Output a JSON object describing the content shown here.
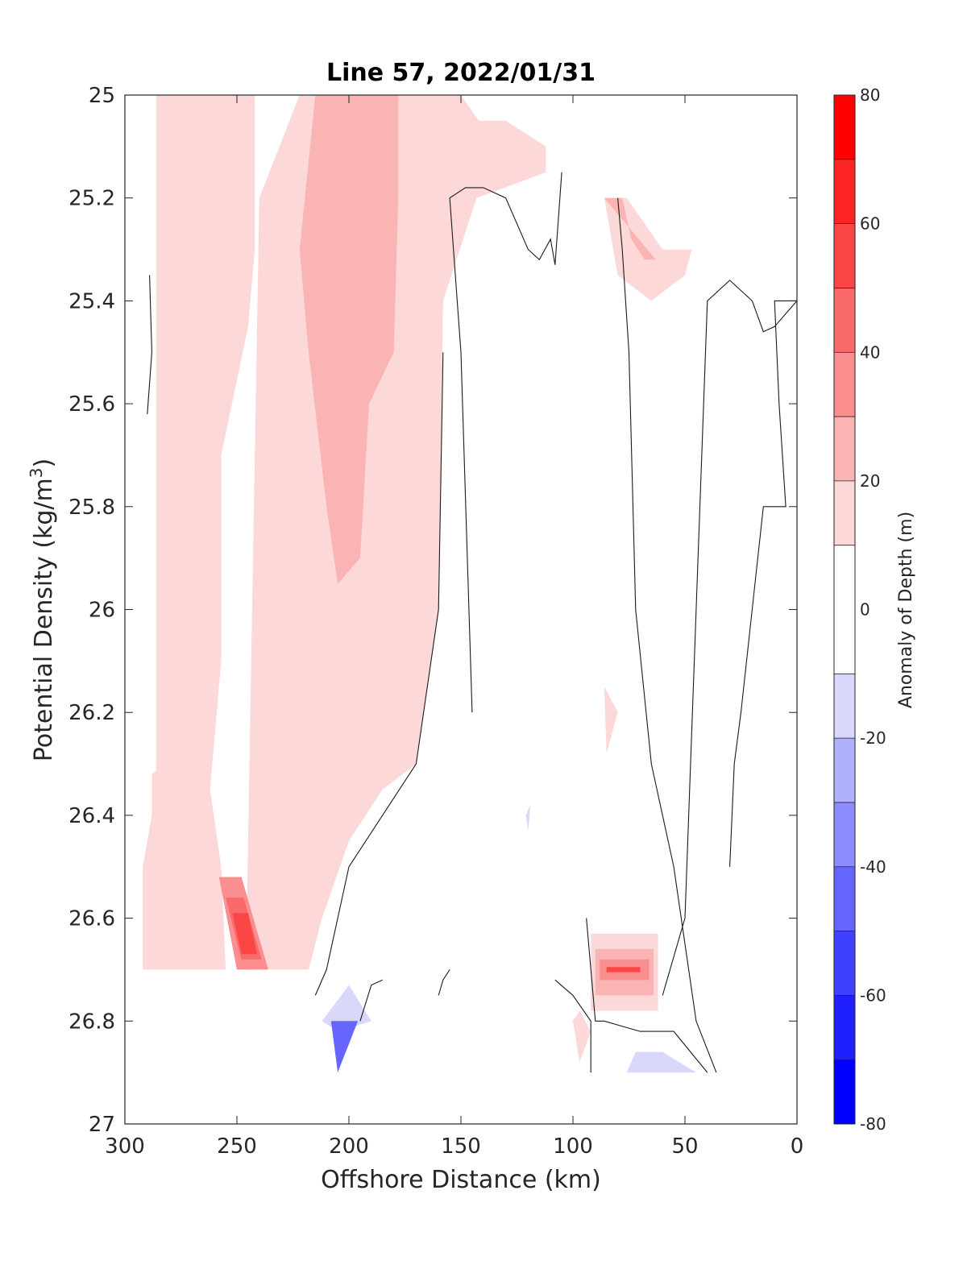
{
  "chart_data": {
    "type": "contourf",
    "title": "Line 57, 2022/01/31",
    "xlabel": "Offshore Distance (km)",
    "ylabel_main": "Potential Density (kg/m",
    "ylabel_sup": "3",
    "ylabel_end": ")",
    "xlim": [
      300,
      0
    ],
    "ylim": [
      27,
      25
    ],
    "x_reversed": true,
    "y_reversed": true,
    "grid": false,
    "x_ticks": [
      300,
      250,
      200,
      150,
      100,
      50,
      0
    ],
    "y_ticks": [
      25,
      25.2,
      25.4,
      25.6,
      25.8,
      26,
      26.2,
      26.4,
      26.6,
      26.8,
      27
    ],
    "y_tick_labels": [
      "25",
      "25.2",
      "25.4",
      "25.6",
      "25.8",
      "26",
      "26.2",
      "26.4",
      "26.6",
      "26.8",
      "27"
    ],
    "colorbar": {
      "label": "Anomaly of Depth (m)",
      "ticks": [
        80,
        60,
        40,
        20,
        0,
        -20,
        -40,
        -60,
        -80
      ],
      "levels": [
        -80,
        -70,
        -60,
        -50,
        -40,
        -30,
        -20,
        -10,
        10,
        20,
        30,
        40,
        50,
        60,
        70,
        80
      ],
      "colors": [
        "#0000ff",
        "#2020ff",
        "#4040ff",
        "#6666ff",
        "#8c8cff",
        "#b0b0fb",
        "#d8d8fb",
        "#ffffff",
        "#fcd8d8",
        "#fbb4b4",
        "#fb8e8e",
        "#fa6a6a",
        "#fb4646",
        "#fc2424",
        "#ff0000"
      ]
    },
    "regions": [
      {
        "level": 15,
        "points": [
          [
            286,
            25
          ],
          [
            242,
            25
          ],
          [
            242,
            25.3
          ],
          [
            245,
            25.45
          ],
          [
            257,
            25.7
          ],
          [
            257,
            26.1
          ],
          [
            265,
            26.5
          ],
          [
            270,
            26.5
          ],
          [
            270,
            26.6
          ],
          [
            286,
            26.6
          ]
        ]
      },
      {
        "level": 15,
        "points": [
          [
            288,
            26.32
          ],
          [
            282,
            26.3
          ],
          [
            272,
            26.38
          ],
          [
            262,
            26.35
          ],
          [
            257,
            26.5
          ],
          [
            255,
            26.7
          ],
          [
            292,
            26.7
          ],
          [
            292,
            26.5
          ],
          [
            288,
            26.4
          ]
        ]
      },
      {
        "level": 15,
        "points": [
          [
            246,
            26.7
          ],
          [
            240,
            25.2
          ],
          [
            222,
            25
          ],
          [
            150,
            25
          ],
          [
            142,
            25.05
          ],
          [
            130,
            25.05
          ],
          [
            112,
            25.1
          ],
          [
            112,
            25.15
          ],
          [
            143,
            25.2
          ],
          [
            158,
            25.4
          ],
          [
            160,
            26
          ],
          [
            170,
            26.3
          ],
          [
            185,
            26.35
          ],
          [
            200,
            26.45
          ],
          [
            212,
            26.6
          ],
          [
            218,
            26.7
          ]
        ]
      },
      {
        "level": 15,
        "points": [
          [
            86,
            25.2
          ],
          [
            76,
            25.2
          ],
          [
            60,
            25.3
          ],
          [
            47,
            25.3
          ],
          [
            50,
            25.35
          ],
          [
            65,
            25.4
          ],
          [
            80,
            25.35
          ]
        ]
      },
      {
        "level": 15,
        "points": [
          [
            86,
            26.15
          ],
          [
            80,
            26.2
          ],
          [
            85,
            26.28
          ]
        ]
      },
      {
        "level": 15,
        "points": [
          [
            100,
            26.8
          ],
          [
            97,
            26.78
          ],
          [
            92,
            26.82
          ],
          [
            97,
            26.88
          ]
        ]
      },
      {
        "level": 25,
        "points": [
          [
            215,
            25
          ],
          [
            178,
            25
          ],
          [
            178,
            25.2
          ],
          [
            180,
            25.5
          ],
          [
            191,
            25.6
          ],
          [
            195,
            25.9
          ],
          [
            205,
            25.95
          ],
          [
            210,
            25.8
          ],
          [
            218,
            25.5
          ],
          [
            222,
            25.3
          ]
        ]
      },
      {
        "level": 25,
        "points": [
          [
            86,
            25.2
          ],
          [
            78,
            25.2
          ],
          [
            74,
            25.28
          ],
          [
            68,
            25.32
          ],
          [
            63,
            25.32
          ]
        ]
      },
      {
        "level": 35,
        "points": [
          [
            258,
            26.52
          ],
          [
            248,
            26.52
          ],
          [
            236,
            26.7
          ],
          [
            250,
            26.7
          ]
        ]
      },
      {
        "level": 45,
        "points": [
          [
            255,
            26.56
          ],
          [
            247,
            26.56
          ],
          [
            239,
            26.68
          ],
          [
            248,
            26.68
          ]
        ]
      },
      {
        "level": 60,
        "points": [
          [
            252,
            26.59
          ],
          [
            245,
            26.59
          ],
          [
            241,
            26.67
          ],
          [
            248,
            26.67
          ]
        ]
      },
      {
        "level": 15,
        "points": [
          [
            92,
            26.63
          ],
          [
            62,
            26.63
          ],
          [
            62,
            26.78
          ],
          [
            92,
            26.78
          ]
        ]
      },
      {
        "level": 25,
        "points": [
          [
            90,
            26.66
          ],
          [
            64,
            26.66
          ],
          [
            64,
            26.75
          ],
          [
            90,
            26.75
          ]
        ]
      },
      {
        "level": 40,
        "points": [
          [
            88,
            26.68
          ],
          [
            66,
            26.68
          ],
          [
            66,
            26.72
          ],
          [
            88,
            26.72
          ]
        ]
      },
      {
        "level": 60,
        "points": [
          [
            85,
            26.695
          ],
          [
            70,
            26.695
          ],
          [
            70,
            26.705
          ],
          [
            85,
            26.705
          ]
        ]
      },
      {
        "level": -15,
        "points": [
          [
            212,
            26.8
          ],
          [
            200,
            26.73
          ],
          [
            190,
            26.8
          ],
          [
            205,
            26.82
          ]
        ]
      },
      {
        "level": -15,
        "points": [
          [
            76,
            26.9
          ],
          [
            72,
            26.86
          ],
          [
            60,
            26.86
          ],
          [
            45,
            26.9
          ]
        ]
      },
      {
        "level": -15,
        "points": [
          [
            121,
            26.4
          ],
          [
            119,
            26.38
          ],
          [
            120,
            26.43
          ]
        ]
      },
      {
        "level": -40,
        "points": [
          [
            208,
            26.8
          ],
          [
            196,
            26.8
          ],
          [
            205,
            26.9
          ]
        ]
      }
    ],
    "zero_contours": [
      [
        [
          289,
          25.35
        ],
        [
          288,
          25.5
        ],
        [
          290,
          25.62
        ]
      ],
      [
        [
          145,
          26.2
        ],
        [
          150,
          25.5
        ],
        [
          155,
          25.2
        ],
        [
          148,
          25.18
        ],
        [
          140,
          25.18
        ],
        [
          130,
          25.2
        ],
        [
          120,
          25.3
        ],
        [
          115,
          25.32
        ],
        [
          110,
          25.28
        ],
        [
          108,
          25.33
        ],
        [
          105,
          25.15
        ]
      ],
      [
        [
          80,
          25.2
        ],
        [
          78,
          25.3
        ],
        [
          75,
          25.5
        ],
        [
          72,
          26
        ],
        [
          65,
          26.3
        ],
        [
          55,
          26.5
        ],
        [
          45,
          26.8
        ],
        [
          36,
          26.9
        ]
      ],
      [
        [
          30,
          26.5
        ],
        [
          28,
          26.3
        ],
        [
          25,
          26.2
        ],
        [
          20,
          26
        ],
        [
          15,
          25.8
        ],
        [
          5,
          25.8
        ],
        [
          8,
          25.6
        ],
        [
          10,
          25.4
        ],
        [
          5,
          25.4
        ],
        [
          0,
          25.4
        ]
      ],
      [
        [
          0,
          25.4
        ],
        [
          10,
          25.45
        ],
        [
          15,
          25.46
        ],
        [
          20,
          25.4
        ],
        [
          30,
          25.36
        ],
        [
          40,
          25.4
        ],
        [
          45,
          26
        ],
        [
          50,
          26.6
        ],
        [
          60,
          26.75
        ]
      ],
      [
        [
          155,
          26.7
        ],
        [
          158,
          26.72
        ],
        [
          160,
          26.75
        ]
      ],
      [
        [
          108,
          26.72
        ],
        [
          100,
          26.75
        ],
        [
          92,
          26.8
        ],
        [
          92,
          26.9
        ]
      ],
      [
        [
          94,
          26.6
        ],
        [
          90,
          26.8
        ],
        [
          86,
          26.8
        ],
        [
          70,
          26.82
        ],
        [
          55,
          26.82
        ],
        [
          40,
          26.9
        ]
      ],
      [
        [
          195,
          26.8
        ],
        [
          190,
          26.73
        ],
        [
          185,
          26.72
        ]
      ],
      [
        [
          215,
          26.75
        ],
        [
          210,
          26.7
        ],
        [
          200,
          26.5
        ],
        [
          185,
          26.4
        ],
        [
          170,
          26.3
        ],
        [
          160,
          26
        ],
        [
          158,
          25.5
        ]
      ]
    ]
  }
}
